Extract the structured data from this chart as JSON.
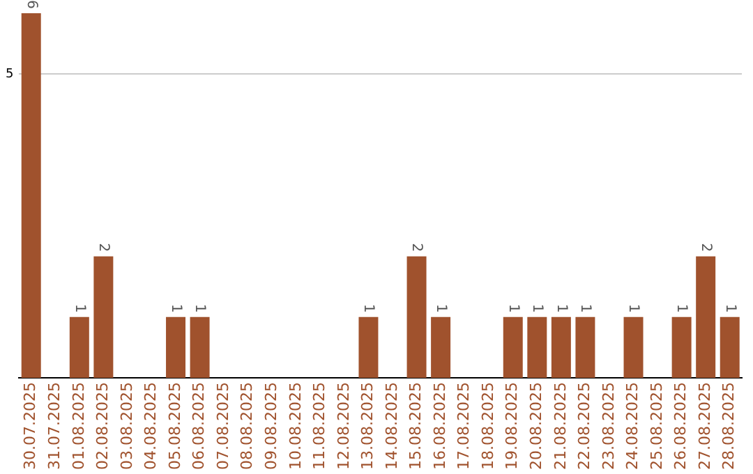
{
  "chart_data": {
    "type": "bar",
    "categories": [
      "30.07.2025",
      "31.07.2025",
      "01.08.2025",
      "02.08.2025",
      "03.08.2025",
      "04.08.2025",
      "05.08.2025",
      "06.08.2025",
      "07.08.2025",
      "08.08.2025",
      "09.08.2025",
      "10.08.2025",
      "11.08.2025",
      "12.08.2025",
      "13.08.2025",
      "14.08.2025",
      "15.08.2025",
      "16.08.2025",
      "17.08.2025",
      "18.08.2025",
      "19.08.2025",
      "20.08.2025",
      "21.08.2025",
      "22.08.2025",
      "23.08.2025",
      "24.08.2025",
      "25.08.2025",
      "26.08.2025",
      "27.08.2025",
      "28.08.2025"
    ],
    "values": [
      6,
      0,
      1,
      2,
      0,
      0,
      1,
      1,
      0,
      0,
      0,
      0,
      0,
      0,
      1,
      0,
      2,
      1,
      0,
      0,
      1,
      1,
      1,
      1,
      0,
      1,
      0,
      1,
      2,
      1
    ],
    "value_labels": [
      "6",
      null,
      "1",
      "2",
      null,
      null,
      "1",
      "1",
      null,
      null,
      null,
      null,
      null,
      null,
      "1",
      null,
      "2",
      "1",
      null,
      null,
      "1",
      "1",
      "1",
      "1",
      null,
      "1",
      null,
      "1",
      "2",
      "1"
    ],
    "color": "#a0522d",
    "ylim": [
      0,
      6
    ],
    "yticks": [
      5
    ],
    "grid": "y",
    "legend": false
  }
}
